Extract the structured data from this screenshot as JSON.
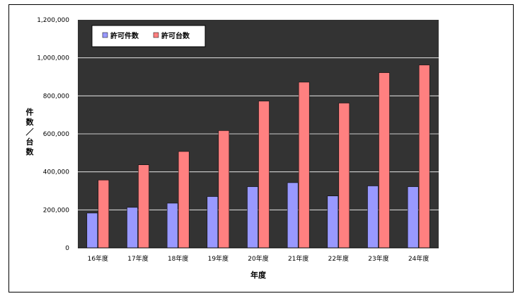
{
  "chart_data": {
    "type": "bar",
    "categories": [
      "16年度",
      "17年度",
      "18年度",
      "19年度",
      "20年度",
      "21年度",
      "22年度",
      "23年度",
      "24年度"
    ],
    "series": [
      {
        "name": "許可件数",
        "color": "#9999ff",
        "values": [
          183000,
          213000,
          235000,
          270000,
          322000,
          343000,
          273000,
          326000,
          322000
        ]
      },
      {
        "name": "許可台数",
        "color": "#ff8080",
        "values": [
          357000,
          437000,
          507000,
          617000,
          772000,
          872000,
          762000,
          922000,
          962000
        ]
      }
    ],
    "xlabel": "年度",
    "ylabel": "件数／台数",
    "ylim": [
      0,
      1200000
    ],
    "yticks": [
      0,
      200000,
      400000,
      600000,
      800000,
      1000000,
      1200000
    ],
    "ytick_labels": [
      "0",
      "200,000",
      "400,000",
      "600,000",
      "800,000",
      "1,000,000",
      "1,200,000"
    ],
    "plot_background": "#333333",
    "grid": true,
    "legend_position": "top-left"
  }
}
